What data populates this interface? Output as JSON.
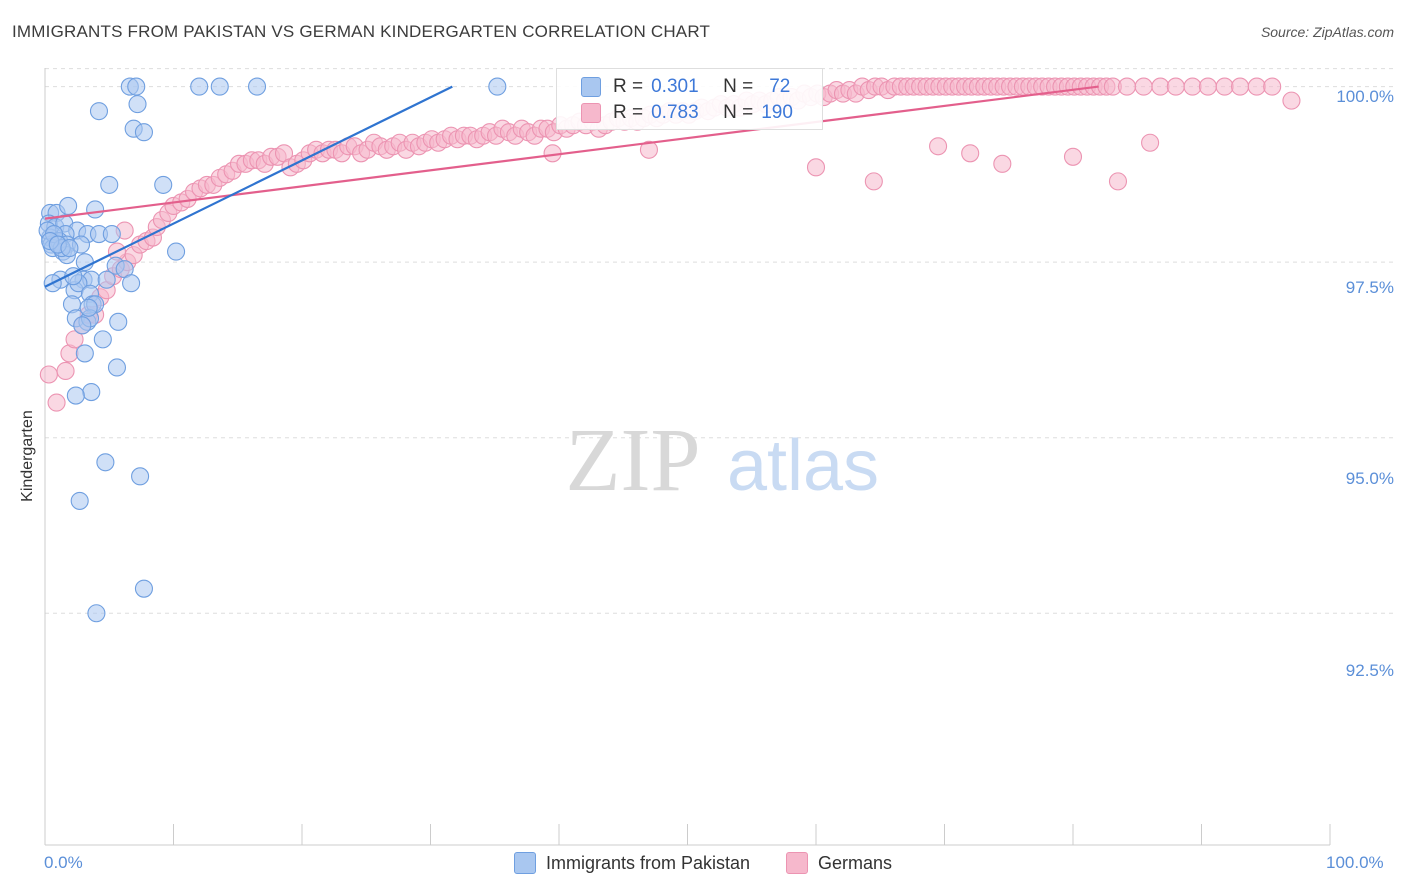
{
  "title": "IMMIGRANTS FROM PAKISTAN VS GERMAN KINDERGARTEN CORRELATION CHART",
  "source": "Source: ZipAtlas.com",
  "watermark": {
    "zip": "ZIP",
    "atlas": "atlas"
  },
  "colors": {
    "blue_fill": "#a9c7f0",
    "blue_stroke": "#6f9fe0",
    "blue_line": "#2f74d0",
    "pink_fill": "#f6b8cc",
    "pink_stroke": "#ec94b2",
    "pink_line": "#e35f8c",
    "tick_text": "#5b8fd8",
    "grid": "#dddddd"
  },
  "legend": {
    "series1": {
      "r_label": "R =",
      "r_value": "0.301",
      "n_label": "N =",
      "n_value": "72"
    },
    "series2": {
      "r_label": "R =",
      "r_value": "0.783",
      "n_label": "N =",
      "n_value": "190"
    }
  },
  "chart_data": {
    "type": "scatter",
    "title": "IMMIGRANTS FROM PAKISTAN VS GERMAN KINDERGARTEN CORRELATION CHART",
    "xlabel": "",
    "ylabel": "Kindergarten",
    "xlim": [
      0,
      100
    ],
    "ylim": [
      89.2,
      100.35
    ],
    "x_tick_labels": [
      "0.0%",
      "100.0%"
    ],
    "y_ticks": [
      {
        "value": 100.0,
        "label": "100.0%"
      },
      {
        "value": 97.5,
        "label": "97.5%"
      },
      {
        "value": 95.0,
        "label": "95.0%"
      },
      {
        "value": 92.5,
        "label": "92.5%"
      }
    ],
    "series": [
      {
        "name": "Immigrants from Pakistan",
        "color": "blue",
        "r": 0.301,
        "n": 72,
        "trend": {
          "x0": 0,
          "y0": 97.15,
          "x1": 31.7,
          "y1": 100.0
        },
        "points": [
          [
            6.6,
            100
          ],
          [
            7.1,
            100
          ],
          [
            12.0,
            100
          ],
          [
            13.6,
            100
          ],
          [
            16.5,
            100
          ],
          [
            35.2,
            100
          ],
          [
            7.2,
            99.75
          ],
          [
            4.2,
            99.65
          ],
          [
            6.9,
            99.4
          ],
          [
            7.7,
            99.35
          ],
          [
            5.0,
            98.6
          ],
          [
            9.2,
            98.6
          ],
          [
            0.4,
            98.2
          ],
          [
            0.9,
            98.2
          ],
          [
            1.8,
            98.3
          ],
          [
            3.9,
            98.25
          ],
          [
            0.3,
            98.05
          ],
          [
            0.8,
            98.0
          ],
          [
            1.5,
            98.05
          ],
          [
            2.5,
            97.95
          ],
          [
            0.4,
            97.85
          ],
          [
            0.9,
            97.8
          ],
          [
            1.6,
            97.9
          ],
          [
            3.3,
            97.9
          ],
          [
            4.2,
            97.9
          ],
          [
            5.2,
            97.9
          ],
          [
            0.5,
            97.75
          ],
          [
            1.1,
            97.8
          ],
          [
            1.7,
            97.75
          ],
          [
            0.6,
            97.7
          ],
          [
            1.4,
            97.65
          ],
          [
            1.7,
            97.6
          ],
          [
            10.2,
            97.65
          ],
          [
            3.1,
            97.5
          ],
          [
            5.5,
            97.45
          ],
          [
            6.2,
            97.4
          ],
          [
            1.2,
            97.25
          ],
          [
            3.0,
            97.25
          ],
          [
            3.6,
            97.25
          ],
          [
            4.8,
            97.25
          ],
          [
            6.7,
            97.2
          ],
          [
            0.6,
            97.2
          ],
          [
            2.3,
            97.1
          ],
          [
            2.6,
            97.2
          ],
          [
            3.5,
            97.05
          ],
          [
            2.1,
            96.9
          ],
          [
            3.7,
            96.9
          ],
          [
            3.9,
            96.9
          ],
          [
            2.4,
            96.7
          ],
          [
            3.3,
            96.65
          ],
          [
            3.5,
            96.7
          ],
          [
            5.7,
            96.65
          ],
          [
            2.9,
            96.6
          ],
          [
            4.5,
            96.4
          ],
          [
            3.1,
            96.2
          ],
          [
            5.6,
            96.0
          ],
          [
            3.6,
            95.65
          ],
          [
            2.4,
            95.6
          ],
          [
            4.7,
            94.65
          ],
          [
            7.4,
            94.45
          ],
          [
            2.7,
            94.1
          ],
          [
            7.7,
            92.85
          ],
          [
            4.0,
            92.5
          ],
          [
            0.2,
            97.95
          ],
          [
            0.7,
            97.9
          ],
          [
            1.3,
            97.7
          ],
          [
            2.2,
            97.3
          ],
          [
            0.4,
            97.8
          ],
          [
            1.0,
            97.75
          ],
          [
            2.8,
            97.75
          ],
          [
            3.4,
            96.85
          ],
          [
            1.9,
            97.7
          ]
        ]
      },
      {
        "name": "Germans",
        "color": "pink",
        "r": 0.783,
        "n": 190,
        "trend": {
          "x0": 0,
          "y0": 98.12,
          "x1": 82.0,
          "y1": 100.0
        },
        "points": [
          [
            0.3,
            95.9
          ],
          [
            0.9,
            95.5
          ],
          [
            1.6,
            95.95
          ],
          [
            1.9,
            96.2
          ],
          [
            2.3,
            96.4
          ],
          [
            2.9,
            96.6
          ],
          [
            3.4,
            96.75
          ],
          [
            3.9,
            96.75
          ],
          [
            4.3,
            97.0
          ],
          [
            4.8,
            97.1
          ],
          [
            5.3,
            97.3
          ],
          [
            5.9,
            97.4
          ],
          [
            6.4,
            97.5
          ],
          [
            6.9,
            97.6
          ],
          [
            5.6,
            97.65
          ],
          [
            7.4,
            97.75
          ],
          [
            7.9,
            97.8
          ],
          [
            6.2,
            97.95
          ],
          [
            8.4,
            97.85
          ],
          [
            8.7,
            98.0
          ],
          [
            9.1,
            98.1
          ],
          [
            9.6,
            98.2
          ],
          [
            10.0,
            98.3
          ],
          [
            10.6,
            98.35
          ],
          [
            11.1,
            98.4
          ],
          [
            11.6,
            98.5
          ],
          [
            12.1,
            98.55
          ],
          [
            12.6,
            98.6
          ],
          [
            13.1,
            98.6
          ],
          [
            13.6,
            98.7
          ],
          [
            14.1,
            98.75
          ],
          [
            14.6,
            98.8
          ],
          [
            15.1,
            98.9
          ],
          [
            15.6,
            98.9
          ],
          [
            16.1,
            98.95
          ],
          [
            16.6,
            98.95
          ],
          [
            17.1,
            98.9
          ],
          [
            17.6,
            99.0
          ],
          [
            18.1,
            99.0
          ],
          [
            18.6,
            99.05
          ],
          [
            19.1,
            98.85
          ],
          [
            19.6,
            98.9
          ],
          [
            20.1,
            98.95
          ],
          [
            20.6,
            99.05
          ],
          [
            21.1,
            99.1
          ],
          [
            21.6,
            99.05
          ],
          [
            22.1,
            99.1
          ],
          [
            22.6,
            99.1
          ],
          [
            23.1,
            99.05
          ],
          [
            23.6,
            99.15
          ],
          [
            24.1,
            99.15
          ],
          [
            24.6,
            99.05
          ],
          [
            25.1,
            99.1
          ],
          [
            25.6,
            99.2
          ],
          [
            26.1,
            99.15
          ],
          [
            26.6,
            99.1
          ],
          [
            27.1,
            99.15
          ],
          [
            27.6,
            99.2
          ],
          [
            28.1,
            99.1
          ],
          [
            28.6,
            99.2
          ],
          [
            29.1,
            99.15
          ],
          [
            29.6,
            99.2
          ],
          [
            30.1,
            99.25
          ],
          [
            30.6,
            99.2
          ],
          [
            31.1,
            99.25
          ],
          [
            31.6,
            99.3
          ],
          [
            32.1,
            99.25
          ],
          [
            32.6,
            99.3
          ],
          [
            33.1,
            99.3
          ],
          [
            33.6,
            99.25
          ],
          [
            34.1,
            99.3
          ],
          [
            34.6,
            99.35
          ],
          [
            35.1,
            99.3
          ],
          [
            35.6,
            99.4
          ],
          [
            36.1,
            99.35
          ],
          [
            36.6,
            99.3
          ],
          [
            37.1,
            99.4
          ],
          [
            37.6,
            99.35
          ],
          [
            38.1,
            99.3
          ],
          [
            38.6,
            99.4
          ],
          [
            39.1,
            99.4
          ],
          [
            39.6,
            99.35
          ],
          [
            40.1,
            99.45
          ],
          [
            40.6,
            99.4
          ],
          [
            41.1,
            99.45
          ],
          [
            41.6,
            99.5
          ],
          [
            42.1,
            99.45
          ],
          [
            42.6,
            99.5
          ],
          [
            43.1,
            99.4
          ],
          [
            43.6,
            99.45
          ],
          [
            44.1,
            99.5
          ],
          [
            44.6,
            99.55
          ],
          [
            45.1,
            99.5
          ],
          [
            45.6,
            99.55
          ],
          [
            46.1,
            99.5
          ],
          [
            46.6,
            99.55
          ],
          [
            47.1,
            99.6
          ],
          [
            47.6,
            99.55
          ],
          [
            48.1,
            99.6
          ],
          [
            48.6,
            99.65
          ],
          [
            49.1,
            99.6
          ],
          [
            49.6,
            99.65
          ],
          [
            50.1,
            99.6
          ],
          [
            50.6,
            99.65
          ],
          [
            51.1,
            99.7
          ],
          [
            51.6,
            99.65
          ],
          [
            52.1,
            99.7
          ],
          [
            52.6,
            99.75
          ],
          [
            53.1,
            99.7
          ],
          [
            53.6,
            99.75
          ],
          [
            54.1,
            99.7
          ],
          [
            54.6,
            99.8
          ],
          [
            55.1,
            99.75
          ],
          [
            55.6,
            99.8
          ],
          [
            56.1,
            99.75
          ],
          [
            56.6,
            99.8
          ],
          [
            57.1,
            99.85
          ],
          [
            57.6,
            99.8
          ],
          [
            58.1,
            99.85
          ],
          [
            58.6,
            99.8
          ],
          [
            59.1,
            99.9
          ],
          [
            59.6,
            99.85
          ],
          [
            60.1,
            99.9
          ],
          [
            60.6,
            99.85
          ],
          [
            61.1,
            99.9
          ],
          [
            61.6,
            99.95
          ],
          [
            62.1,
            99.9
          ],
          [
            62.6,
            99.95
          ],
          [
            63.1,
            99.9
          ],
          [
            63.6,
            100
          ],
          [
            64.1,
            99.95
          ],
          [
            64.6,
            100
          ],
          [
            65.1,
            100
          ],
          [
            65.6,
            99.95
          ],
          [
            66.1,
            100
          ],
          [
            66.6,
            100
          ],
          [
            67.1,
            100
          ],
          [
            67.6,
            100
          ],
          [
            68.1,
            100
          ],
          [
            68.6,
            100
          ],
          [
            69.1,
            100
          ],
          [
            69.6,
            100
          ],
          [
            70.1,
            100
          ],
          [
            70.6,
            100
          ],
          [
            71.1,
            100
          ],
          [
            71.6,
            100
          ],
          [
            72.1,
            100
          ],
          [
            72.6,
            100
          ],
          [
            73.1,
            100
          ],
          [
            73.6,
            100
          ],
          [
            74.1,
            100
          ],
          [
            74.6,
            100
          ],
          [
            75.1,
            100
          ],
          [
            75.6,
            100
          ],
          [
            76.1,
            100
          ],
          [
            76.6,
            100
          ],
          [
            77.1,
            100
          ],
          [
            77.6,
            100
          ],
          [
            78.1,
            100
          ],
          [
            78.6,
            100
          ],
          [
            79.1,
            100
          ],
          [
            79.6,
            100
          ],
          [
            80.1,
            100
          ],
          [
            80.6,
            100
          ],
          [
            81.1,
            100
          ],
          [
            81.6,
            100
          ],
          [
            82.1,
            100
          ],
          [
            82.6,
            100
          ],
          [
            83.1,
            100
          ],
          [
            84.2,
            100
          ],
          [
            85.5,
            100
          ],
          [
            86.8,
            100
          ],
          [
            88.0,
            100
          ],
          [
            89.3,
            100
          ],
          [
            90.5,
            100
          ],
          [
            91.8,
            100
          ],
          [
            93.0,
            100
          ],
          [
            94.3,
            100
          ],
          [
            95.5,
            100
          ],
          [
            97.0,
            99.8
          ],
          [
            39.5,
            99.05
          ],
          [
            47.0,
            99.1
          ],
          [
            60.0,
            98.85
          ],
          [
            64.5,
            98.65
          ],
          [
            69.5,
            99.15
          ],
          [
            72.0,
            99.05
          ],
          [
            74.5,
            98.9
          ],
          [
            80.0,
            99.0
          ],
          [
            83.5,
            98.65
          ],
          [
            86.0,
            99.2
          ]
        ]
      }
    ]
  },
  "bottom_legend": {
    "item1": "Immigrants from Pakistan",
    "item2": "Germans"
  }
}
